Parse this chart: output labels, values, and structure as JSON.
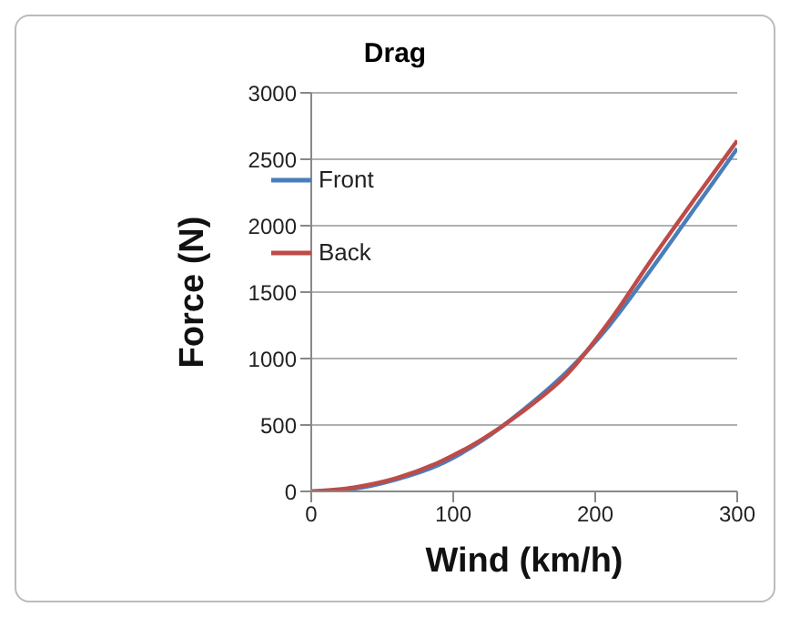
{
  "chart_data": {
    "type": "line",
    "title": "Drag",
    "xlabel": "Wind (km/h)",
    "ylabel": "Force (N)",
    "x": [
      0,
      30,
      60,
      90,
      120,
      150,
      180,
      210,
      240,
      270,
      300
    ],
    "series": [
      {
        "name": "Front",
        "color": "#4a7ebb",
        "values": [
          0,
          20,
          90,
          200,
          380,
          620,
          900,
          1250,
          1680,
          2130,
          2580
        ]
      },
      {
        "name": "Back",
        "color": "#be4b48",
        "values": [
          0,
          30,
          100,
          220,
          390,
          610,
          880,
          1280,
          1750,
          2200,
          2640
        ]
      }
    ],
    "xlim": [
      0,
      300
    ],
    "xticks": [
      0,
      100,
      200,
      300
    ],
    "ylim": [
      0,
      3000
    ],
    "yticks": [
      0,
      500,
      1000,
      1500,
      2000,
      2500,
      3000
    ],
    "grid": "y",
    "legend": "top left",
    "marker": "none",
    "line_style": "solid"
  }
}
